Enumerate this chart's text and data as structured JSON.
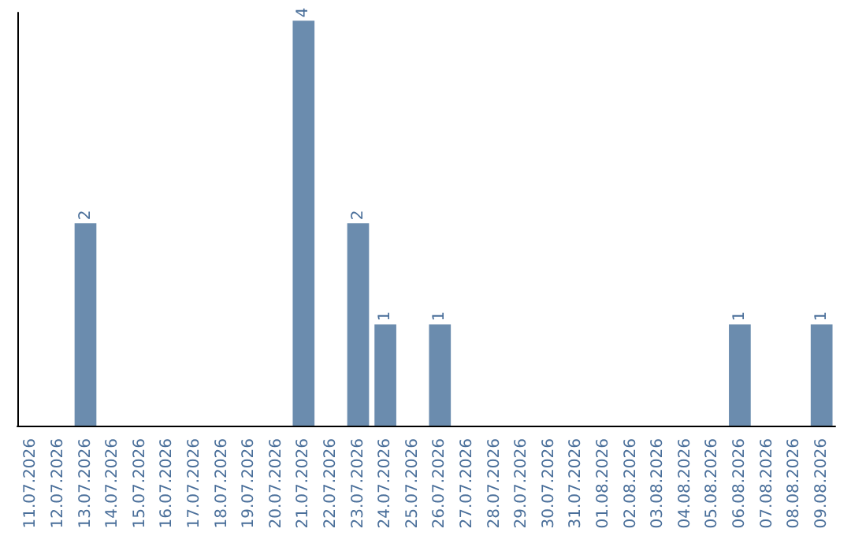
{
  "chart_data": {
    "type": "bar",
    "categories": [
      "11.07.2026",
      "12.07.2026",
      "13.07.2026",
      "14.07.2026",
      "15.07.2026",
      "16.07.2026",
      "17.07.2026",
      "18.07.2026",
      "19.07.2026",
      "20.07.2026",
      "21.07.2026",
      "22.07.2026",
      "23.07.2026",
      "24.07.2026",
      "25.07.2026",
      "26.07.2026",
      "27.07.2026",
      "28.07.2026",
      "29.07.2026",
      "30.07.2026",
      "31.07.2026",
      "01.08.2026",
      "02.08.2026",
      "03.08.2026",
      "04.08.2026",
      "05.08.2026",
      "06.08.2026",
      "07.08.2026",
      "08.08.2026",
      "09.08.2026"
    ],
    "values": [
      0,
      0,
      2,
      0,
      0,
      0,
      0,
      0,
      0,
      0,
      4,
      0,
      2,
      1,
      0,
      1,
      0,
      0,
      0,
      0,
      0,
      0,
      0,
      0,
      0,
      0,
      1,
      0,
      0,
      1
    ],
    "value_labels": [
      null,
      null,
      "2",
      null,
      null,
      null,
      null,
      null,
      null,
      null,
      "4",
      null,
      "2",
      "1",
      null,
      "1",
      null,
      null,
      null,
      null,
      null,
      null,
      null,
      null,
      null,
      null,
      "1",
      null,
      null,
      "1"
    ],
    "color": "#6b8cae",
    "tick_labels": "x",
    "grid": false
  }
}
